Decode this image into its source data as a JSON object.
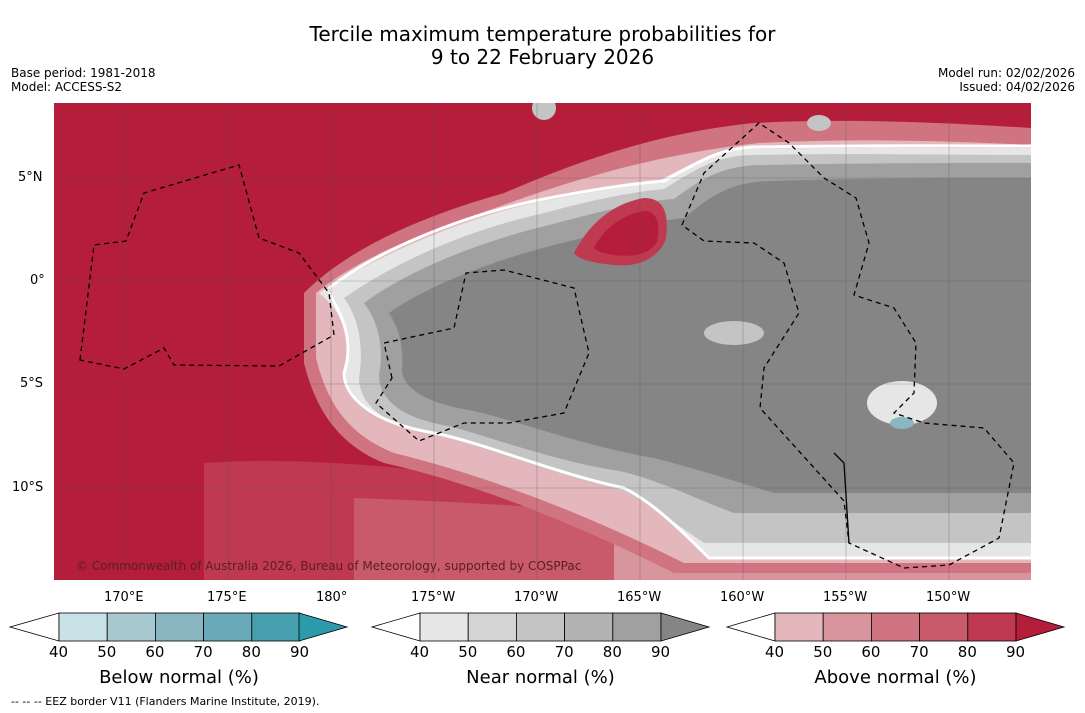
{
  "header": {
    "title_line1": "Tercile maximum temperature probabilities for",
    "title_line2": "9 to 22 February 2026",
    "base_period": "Base period: 1981-2018",
    "model": "Model: ACCESS-S2",
    "model_run": "Model run: 02/02/2026",
    "issued": "Issued: 04/02/2026"
  },
  "map": {
    "lat_labels": [
      "5°N",
      "0°",
      "5°S",
      "10°S"
    ],
    "lon_labels": [
      "170°E",
      "175°E",
      "180°",
      "175°W",
      "170°W",
      "165°W",
      "160°W",
      "155°W",
      "150°W"
    ],
    "copyright": "© Commonwealth of Australia 2026, Bureau of Meteorology, supported by COSPPac",
    "colors": {
      "above_90": "#b41e3a",
      "above_80": "#bf3950",
      "above_70": "#c85a6a",
      "above_60": "#cf7480",
      "above_50": "#d9959d",
      "above_40": "#e3b7bc",
      "near_90": "#858585",
      "near_80": "#a0a0a0",
      "near_70": "#b3b3b3",
      "near_60": "#c4c4c4",
      "near_50": "#d4d4d4",
      "near_40": "#e6e6e6",
      "below_60": "#8ab6c2"
    }
  },
  "colorbars": [
    {
      "label": "Below normal (%)",
      "ticks": [
        "40",
        "50",
        "60",
        "70",
        "80",
        "90"
      ],
      "colors": [
        "#c8e2e8",
        "#a8c8cf",
        "#8ab6c2",
        "#6aaab8",
        "#47a0ae",
        "#2c9aab"
      ]
    },
    {
      "label": "Near normal (%)",
      "ticks": [
        "40",
        "50",
        "60",
        "70",
        "80",
        "90"
      ],
      "colors": [
        "#e6e6e6",
        "#d4d4d4",
        "#c4c4c4",
        "#b3b3b3",
        "#a0a0a0",
        "#858585"
      ]
    },
    {
      "label": "Above normal (%)",
      "ticks": [
        "40",
        "50",
        "60",
        "70",
        "80",
        "90"
      ],
      "colors": [
        "#e3b7bc",
        "#d9959d",
        "#cf7480",
        "#c85a6a",
        "#bf3950",
        "#b41e3a"
      ]
    }
  ],
  "footnote": "--  --  -- EEZ border V11 (Flanders Marine Institute, 2019)."
}
